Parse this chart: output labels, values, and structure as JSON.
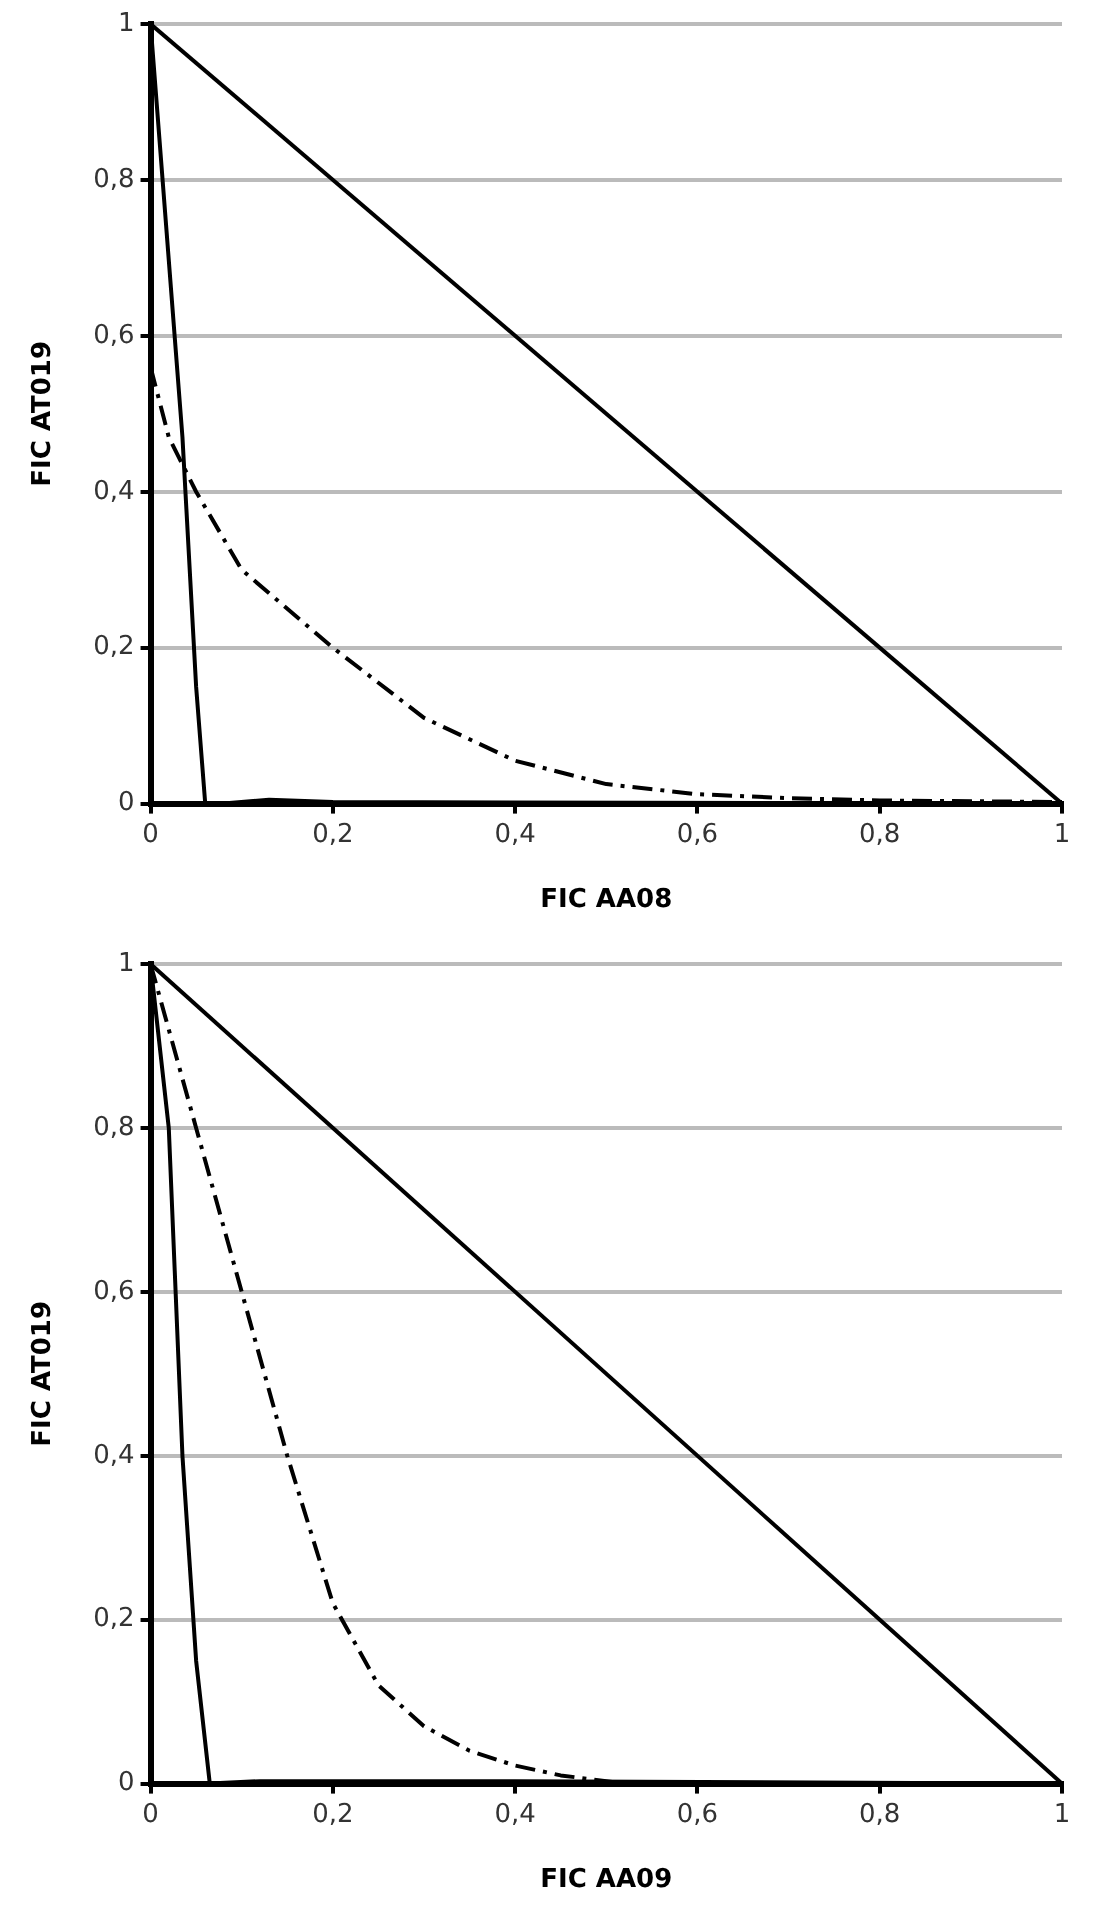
{
  "chart_data": [
    {
      "type": "line",
      "xlabel": "FIC AA08",
      "ylabel": "FIC AT019",
      "xlim": [
        0,
        1
      ],
      "ylim": [
        0,
        1
      ],
      "xticks": [
        {
          "value": 0,
          "label": "0"
        },
        {
          "value": 0.2,
          "label": "0,2"
        },
        {
          "value": 0.4,
          "label": "0,4"
        },
        {
          "value": 0.6,
          "label": "0,6"
        },
        {
          "value": 0.8,
          "label": "0,8"
        },
        {
          "value": 1,
          "label": "1"
        }
      ],
      "yticks": [
        {
          "value": 0,
          "label": "0"
        },
        {
          "value": 0.2,
          "label": "0,2"
        },
        {
          "value": 0.4,
          "label": "0,4"
        },
        {
          "value": 0.6,
          "label": "0,6"
        },
        {
          "value": 0.8,
          "label": "0,8"
        },
        {
          "value": 1,
          "label": "1"
        }
      ],
      "grid": "y",
      "marker": "none",
      "legend": false,
      "series": [
        {
          "color": "#000000",
          "line_style": "solid",
          "x": [
            0,
            1
          ],
          "values": [
            1,
            0
          ]
        },
        {
          "color": "#000000",
          "line_style": "solid",
          "x": [
            0,
            0.035,
            0.05,
            0.06,
            0.08,
            0.13,
            0.2,
            1
          ],
          "values": [
            1,
            0.47,
            0.15,
            0,
            0,
            0.005,
            0.002,
            0
          ]
        },
        {
          "color": "#000000",
          "line_style": "dashed",
          "x": [
            0,
            0.02,
            0.05,
            0.1,
            0.2,
            0.3,
            0.4,
            0.5,
            0.6,
            0.7,
            0.8,
            1
          ],
          "values": [
            0.56,
            0.47,
            0.4,
            0.3,
            0.2,
            0.11,
            0.055,
            0.025,
            0.012,
            0.007,
            0.004,
            0.002
          ]
        }
      ]
    },
    {
      "type": "line",
      "xlabel": "FIC AA09",
      "ylabel": "FIC AT019",
      "xlim": [
        0,
        1
      ],
      "ylim": [
        0,
        1
      ],
      "xticks": [
        {
          "value": 0,
          "label": "0"
        },
        {
          "value": 0.2,
          "label": "0,2"
        },
        {
          "value": 0.4,
          "label": "0,4"
        },
        {
          "value": 0.6,
          "label": "0,6"
        },
        {
          "value": 0.8,
          "label": "0,8"
        },
        {
          "value": 1,
          "label": "1"
        }
      ],
      "yticks": [
        {
          "value": 0,
          "label": "0"
        },
        {
          "value": 0.2,
          "label": "0,2"
        },
        {
          "value": 0.4,
          "label": "0,4"
        },
        {
          "value": 0.6,
          "label": "0,6"
        },
        {
          "value": 0.8,
          "label": "0,8"
        },
        {
          "value": 1,
          "label": "1"
        }
      ],
      "grid": "y",
      "marker": "none",
      "legend": false,
      "series": [
        {
          "color": "#000000",
          "line_style": "solid",
          "x": [
            0,
            1
          ],
          "values": [
            1,
            0
          ]
        },
        {
          "color": "#000000",
          "line_style": "solid",
          "x": [
            0,
            0.02,
            0.035,
            0.05,
            0.065,
            0.12,
            0.4,
            1
          ],
          "values": [
            1,
            0.8,
            0.4,
            0.15,
            0,
            0.003,
            0.003,
            0
          ]
        },
        {
          "color": "#000000",
          "line_style": "dashed",
          "x": [
            0,
            0.05,
            0.1,
            0.15,
            0.2,
            0.25,
            0.3,
            0.35,
            0.4,
            0.45,
            0.5,
            0.52
          ],
          "values": [
            1,
            0.8,
            0.6,
            0.4,
            0.22,
            0.12,
            0.07,
            0.04,
            0.022,
            0.01,
            0.003,
            0
          ]
        }
      ]
    }
  ]
}
